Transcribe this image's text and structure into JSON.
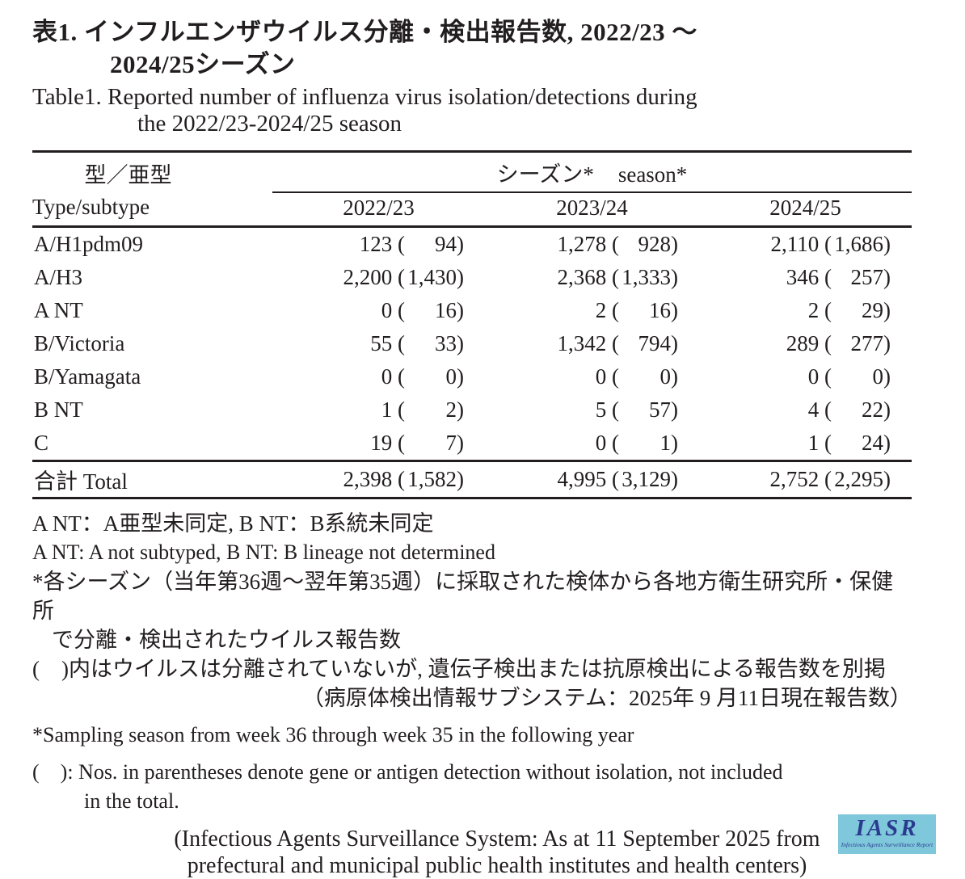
{
  "title": {
    "jp_line1": "表1. インフルエンザウイルス分離・検出報告数, 2022/23 ～",
    "jp_line2": "2024/25シーズン",
    "en_line1": "Table1. Reported number of influenza virus isolation/detections during",
    "en_line2": "the 2022/23-2024/25 season"
  },
  "table": {
    "header_jp": "型／亜型",
    "header_en": "Type/subtype",
    "season_label_jp": "シーズン*",
    "season_label_en": "season*",
    "seasons": [
      "2022/23",
      "2023/24",
      "2024/25"
    ],
    "fmt": {
      "open": " (",
      "close": ")"
    },
    "rows": [
      {
        "label": "A/H1pdm09",
        "cells": [
          {
            "v": "123",
            "p": "94"
          },
          {
            "v": "1,278",
            "p": "928"
          },
          {
            "v": "2,110",
            "p": "1,686"
          }
        ]
      },
      {
        "label": "A/H3",
        "cells": [
          {
            "v": "2,200",
            "p": "1,430"
          },
          {
            "v": "2,368",
            "p": "1,333"
          },
          {
            "v": "346",
            "p": "257"
          }
        ]
      },
      {
        "label": "A NT",
        "cells": [
          {
            "v": "0",
            "p": "16"
          },
          {
            "v": "2",
            "p": "16"
          },
          {
            "v": "2",
            "p": "29"
          }
        ]
      },
      {
        "label": "B/Victoria",
        "cells": [
          {
            "v": "55",
            "p": "33"
          },
          {
            "v": "1,342",
            "p": "794"
          },
          {
            "v": "289",
            "p": "277"
          }
        ]
      },
      {
        "label": "B/Yamagata",
        "cells": [
          {
            "v": "0",
            "p": "0"
          },
          {
            "v": "0",
            "p": "0"
          },
          {
            "v": "0",
            "p": "0"
          }
        ]
      },
      {
        "label": "B NT",
        "cells": [
          {
            "v": "1",
            "p": "2"
          },
          {
            "v": "5",
            "p": "57"
          },
          {
            "v": "4",
            "p": "22"
          }
        ]
      },
      {
        "label": "C",
        "cells": [
          {
            "v": "19",
            "p": "7"
          },
          {
            "v": "0",
            "p": "1"
          },
          {
            "v": "1",
            "p": "24"
          }
        ]
      }
    ],
    "total": {
      "label": "合計 Total",
      "cells": [
        {
          "v": "2,398",
          "p": "1,582"
        },
        {
          "v": "4,995",
          "p": "3,129"
        },
        {
          "v": "2,752",
          "p": "2,295"
        }
      ]
    }
  },
  "notes": {
    "nt_jp": "A NT：A亜型未同定, B NT：B系統未同定",
    "nt_en": "A NT: A not subtyped, B NT: B lineage not determined",
    "season_jp_1": "*各シーズン（当年第36週～翌年第35週）に採取された検体から各地方衛生研究所・保健所",
    "season_jp_2": "で分離・検出されたウイルス報告数",
    "paren_jp": "(　)内はウイルスは分離されていないが, 遺伝子検出または抗原検出による報告数を別掲",
    "source_jp": "（病原体検出情報サブシステム：2025年 9 月11日現在報告数）",
    "season_en": "*Sampling season from week 36 through week 35 in the following year",
    "paren_en_1": "(　): Nos. in parentheses denote gene or antigen detection without isolation, not included",
    "paren_en_2": "in the total.",
    "source_en_1": "(Infectious Agents Surveillance System: As at 11 September 2025 from",
    "source_en_2": "prefectural and municipal public health institutes and health centers)"
  },
  "logo": {
    "text": "IASR",
    "subtext": "Infectious Agents Surveillance Report",
    "bg_color": "#7fc8dc",
    "text_color": "#2a3a8e"
  }
}
